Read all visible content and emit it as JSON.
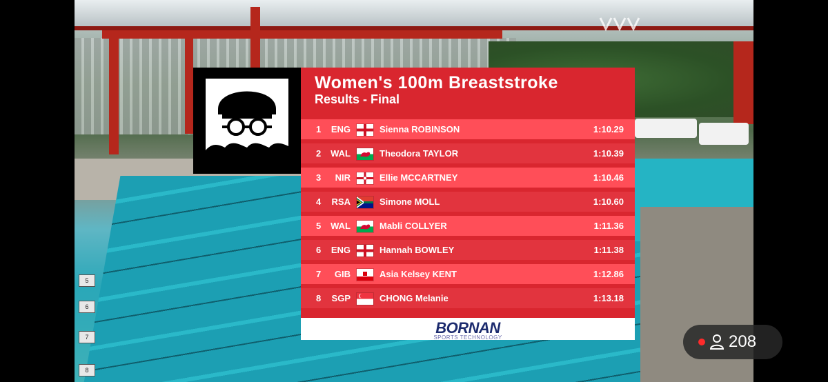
{
  "title": "Women's 100m Breaststroke",
  "subtitle": "Results - Final",
  "results": [
    {
      "rank": "1",
      "nation": "ENG",
      "flag": "eng",
      "name": "Sienna ROBINSON",
      "time": "1:10.29"
    },
    {
      "rank": "2",
      "nation": "WAL",
      "flag": "wal",
      "name": "Theodora TAYLOR",
      "time": "1:10.39"
    },
    {
      "rank": "3",
      "nation": "NIR",
      "flag": "nir",
      "name": "Ellie MCCARTNEY",
      "time": "1:10.46"
    },
    {
      "rank": "4",
      "nation": "RSA",
      "flag": "rsa",
      "name": "Simone MOLL",
      "time": "1:10.60"
    },
    {
      "rank": "5",
      "nation": "WAL",
      "flag": "wal",
      "name": "Mabli COLLYER",
      "time": "1:11.36"
    },
    {
      "rank": "6",
      "nation": "ENG",
      "flag": "eng",
      "name": "Hannah BOWLEY",
      "time": "1:11.38"
    },
    {
      "rank": "7",
      "nation": "GIB",
      "flag": "gib",
      "name": "Asia Kelsey KENT",
      "time": "1:12.86"
    },
    {
      "rank": "8",
      "nation": "SGP",
      "flag": "sgp",
      "name": "CHONG Melanie",
      "time": "1:13.18"
    }
  ],
  "sponsor": {
    "name": "BORNAN",
    "tagline": "SPORTS TECHNOLOGY"
  },
  "viewer_count": "208",
  "colors": {
    "panel": "#d9262f",
    "row": "#ff4e58",
    "row_alt": "#e2343e",
    "live_dot": "#ff2b2b"
  },
  "icons": {
    "event": "swimmer-icon",
    "live": "live-dot-icon",
    "viewers": "person-icon"
  }
}
